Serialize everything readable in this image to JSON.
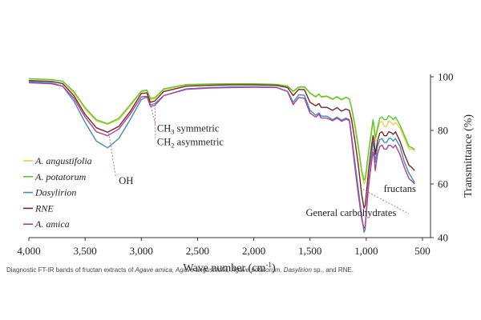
{
  "chart_data": {
    "type": "line",
    "title": "",
    "xlabel": "Wave number (cm",
    "xlabel_sup": "-1",
    "xlabel_close": ")",
    "ylabel": "Transmittance (%)",
    "xlim": [
      4000,
      500
    ],
    "ylim": [
      40,
      100
    ],
    "x_ticks": [
      "4,000",
      "3,500",
      "3,000",
      "2,500",
      "2,000",
      "1,500",
      "1,000",
      "500"
    ],
    "x_tick_values": [
      4000,
      3500,
      3000,
      2500,
      2000,
      1500,
      1000,
      500
    ],
    "y_ticks": [
      "40",
      "60",
      "80",
      "100"
    ],
    "y_tick_values": [
      40,
      60,
      80,
      100
    ],
    "grid": false,
    "legend_position": "left",
    "series": [
      {
        "name": "A. angustifolia",
        "color": "#f2c84b",
        "points": [
          [
            4000,
            99.2
          ],
          [
            3800,
            98.9
          ],
          [
            3700,
            98.3
          ],
          [
            3600,
            94
          ],
          [
            3500,
            88
          ],
          [
            3400,
            83.5
          ],
          [
            3300,
            82.3
          ],
          [
            3200,
            84
          ],
          [
            3100,
            89
          ],
          [
            3000,
            94.5
          ],
          [
            2950,
            94.8
          ],
          [
            2920,
            91.5
          ],
          [
            2880,
            91.8
          ],
          [
            2800,
            95.2
          ],
          [
            2600,
            97
          ],
          [
            2400,
            97.2
          ],
          [
            2200,
            97.3
          ],
          [
            2000,
            97.3
          ],
          [
            1800,
            97.1
          ],
          [
            1700,
            96.4
          ],
          [
            1650,
            94.4
          ],
          [
            1600,
            96
          ],
          [
            1550,
            96.1
          ],
          [
            1500,
            93.8
          ],
          [
            1450,
            92.4
          ],
          [
            1420,
            93.4
          ],
          [
            1400,
            92.4
          ],
          [
            1350,
            92.6
          ],
          [
            1300,
            91.5
          ],
          [
            1260,
            92.4
          ],
          [
            1220,
            91.3
          ],
          [
            1180,
            92.2
          ],
          [
            1150,
            91.6
          ],
          [
            1130,
            88
          ],
          [
            1100,
            81
          ],
          [
            1070,
            73
          ],
          [
            1040,
            64
          ],
          [
            1020,
            60
          ],
          [
            1010,
            60.8
          ],
          [
            1000,
            64
          ],
          [
            980,
            71
          ],
          [
            960,
            77
          ],
          [
            940,
            83
          ],
          [
            930,
            80.5
          ],
          [
            920,
            76
          ],
          [
            900,
            80
          ],
          [
            880,
            83
          ],
          [
            860,
            83.3
          ],
          [
            840,
            81.5
          ],
          [
            820,
            81.5
          ],
          [
            800,
            83.5
          ],
          [
            780,
            83
          ],
          [
            760,
            82
          ],
          [
            740,
            83
          ],
          [
            700,
            81
          ],
          [
            660,
            77
          ],
          [
            620,
            73
          ],
          [
            590,
            73
          ],
          [
            570,
            72.5
          ]
        ]
      },
      {
        "name": "A. potatorum",
        "color": "#55cc2e",
        "points": [
          [
            4000,
            99.3
          ],
          [
            3800,
            99
          ],
          [
            3700,
            98.4
          ],
          [
            3600,
            94.5
          ],
          [
            3500,
            88.5
          ],
          [
            3400,
            84
          ],
          [
            3300,
            82.5
          ],
          [
            3200,
            84.5
          ],
          [
            3100,
            89.5
          ],
          [
            3000,
            94.7
          ],
          [
            2950,
            95.1
          ],
          [
            2920,
            92
          ],
          [
            2880,
            92.2
          ],
          [
            2800,
            95.5
          ],
          [
            2600,
            97.1
          ],
          [
            2400,
            97.3
          ],
          [
            2200,
            97.4
          ],
          [
            2000,
            97.4
          ],
          [
            1800,
            97.2
          ],
          [
            1700,
            96.6
          ],
          [
            1650,
            94.6
          ],
          [
            1600,
            96.2
          ],
          [
            1550,
            96.3
          ],
          [
            1500,
            94
          ],
          [
            1450,
            92.6
          ],
          [
            1420,
            93.6
          ],
          [
            1400,
            92.6
          ],
          [
            1350,
            92.8
          ],
          [
            1300,
            91.7
          ],
          [
            1260,
            92.6
          ],
          [
            1220,
            91.5
          ],
          [
            1180,
            92.4
          ],
          [
            1150,
            91.8
          ],
          [
            1130,
            88.5
          ],
          [
            1100,
            82
          ],
          [
            1070,
            74
          ],
          [
            1040,
            65
          ],
          [
            1020,
            61.5
          ],
          [
            1010,
            62
          ],
          [
            1000,
            65
          ],
          [
            980,
            72
          ],
          [
            960,
            78
          ],
          [
            940,
            84
          ],
          [
            930,
            81.5
          ],
          [
            920,
            77
          ],
          [
            900,
            81
          ],
          [
            880,
            84.5
          ],
          [
            860,
            85
          ],
          [
            840,
            84
          ],
          [
            820,
            84
          ],
          [
            800,
            85.5
          ],
          [
            780,
            85
          ],
          [
            760,
            84
          ],
          [
            740,
            85
          ],
          [
            700,
            82
          ],
          [
            660,
            78
          ],
          [
            620,
            74
          ],
          [
            590,
            73.5
          ],
          [
            570,
            72.8
          ]
        ]
      },
      {
        "name": "Dasylirion",
        "color": "#3f8fb8",
        "points": [
          [
            4000,
            98.2
          ],
          [
            3800,
            97.8
          ],
          [
            3700,
            96.5
          ],
          [
            3600,
            91
          ],
          [
            3500,
            83
          ],
          [
            3400,
            76
          ],
          [
            3300,
            73.5
          ],
          [
            3200,
            77
          ],
          [
            3100,
            84
          ],
          [
            3000,
            91.5
          ],
          [
            2950,
            92.5
          ],
          [
            2920,
            89.6
          ],
          [
            2880,
            90
          ],
          [
            2800,
            93
          ],
          [
            2600,
            95.5
          ],
          [
            2400,
            96
          ],
          [
            2200,
            96.2
          ],
          [
            2000,
            96.3
          ],
          [
            1800,
            96.1
          ],
          [
            1700,
            94.6
          ],
          [
            1650,
            90.5
          ],
          [
            1600,
            93.3
          ],
          [
            1550,
            93.1
          ],
          [
            1500,
            87.5
          ],
          [
            1450,
            85.7
          ],
          [
            1420,
            86.5
          ],
          [
            1400,
            85.3
          ],
          [
            1350,
            85.3
          ],
          [
            1300,
            84
          ],
          [
            1260,
            85
          ],
          [
            1220,
            83.8
          ],
          [
            1180,
            84.6
          ],
          [
            1150,
            84
          ],
          [
            1130,
            78
          ],
          [
            1100,
            68
          ],
          [
            1070,
            58
          ],
          [
            1040,
            48
          ],
          [
            1020,
            42
          ],
          [
            1010,
            43
          ],
          [
            1000,
            50
          ],
          [
            980,
            60
          ],
          [
            960,
            68
          ],
          [
            940,
            76
          ],
          [
            930,
            73
          ],
          [
            920,
            68
          ],
          [
            900,
            74
          ],
          [
            880,
            76.5
          ],
          [
            860,
            77
          ],
          [
            840,
            75.5
          ],
          [
            820,
            75.5
          ],
          [
            800,
            77
          ],
          [
            780,
            77
          ],
          [
            760,
            76
          ],
          [
            740,
            77
          ],
          [
            700,
            74
          ],
          [
            660,
            68
          ],
          [
            620,
            64
          ],
          [
            590,
            62
          ],
          [
            570,
            60.5
          ]
        ]
      },
      {
        "name": "RNE",
        "color": "#7a2424",
        "points": [
          [
            4000,
            98.6
          ],
          [
            3800,
            98.3
          ],
          [
            3700,
            97.5
          ],
          [
            3600,
            93
          ],
          [
            3500,
            86
          ],
          [
            3400,
            81
          ],
          [
            3300,
            79.3
          ],
          [
            3200,
            81.5
          ],
          [
            3100,
            87
          ],
          [
            3000,
            93.8
          ],
          [
            2950,
            94
          ],
          [
            2920,
            90.5
          ],
          [
            2880,
            91
          ],
          [
            2800,
            94.5
          ],
          [
            2600,
            96.5
          ],
          [
            2400,
            96.8
          ],
          [
            2200,
            97
          ],
          [
            2000,
            97
          ],
          [
            1800,
            96.8
          ],
          [
            1700,
            96
          ],
          [
            1650,
            93
          ],
          [
            1600,
            95.3
          ],
          [
            1550,
            95.2
          ],
          [
            1500,
            90.5
          ],
          [
            1450,
            89.2
          ],
          [
            1420,
            90
          ],
          [
            1400,
            88.6
          ],
          [
            1350,
            88.6
          ],
          [
            1300,
            87.5
          ],
          [
            1260,
            88.5
          ],
          [
            1220,
            87.2
          ],
          [
            1180,
            88
          ],
          [
            1150,
            87.4
          ],
          [
            1130,
            84
          ],
          [
            1100,
            76
          ],
          [
            1070,
            67
          ],
          [
            1040,
            56
          ],
          [
            1020,
            51
          ],
          [
            1010,
            52
          ],
          [
            1000,
            56
          ],
          [
            980,
            65
          ],
          [
            960,
            72
          ],
          [
            940,
            78
          ],
          [
            930,
            76
          ],
          [
            920,
            71
          ],
          [
            900,
            76
          ],
          [
            880,
            79
          ],
          [
            860,
            79.5
          ],
          [
            840,
            78
          ],
          [
            820,
            78
          ],
          [
            800,
            79.5
          ],
          [
            780,
            79.2
          ],
          [
            760,
            78.5
          ],
          [
            740,
            79.5
          ],
          [
            700,
            76
          ],
          [
            660,
            71
          ],
          [
            620,
            67
          ],
          [
            590,
            66
          ],
          [
            570,
            65
          ]
        ]
      },
      {
        "name": "A. amica",
        "color": "#b03f98",
        "points": [
          [
            4000,
            97.8
          ],
          [
            3800,
            97.4
          ],
          [
            3700,
            96.5
          ],
          [
            3600,
            92
          ],
          [
            3500,
            85
          ],
          [
            3400,
            79.5
          ],
          [
            3300,
            78
          ],
          [
            3200,
            80.5
          ],
          [
            3100,
            86
          ],
          [
            3000,
            92.5
          ],
          [
            2950,
            92.7
          ],
          [
            2920,
            89
          ],
          [
            2880,
            89.3
          ],
          [
            2800,
            93
          ],
          [
            2600,
            95.3
          ],
          [
            2400,
            95.8
          ],
          [
            2200,
            96
          ],
          [
            2000,
            96.1
          ],
          [
            1800,
            96
          ],
          [
            1700,
            94.5
          ],
          [
            1650,
            89.6
          ],
          [
            1600,
            92.3
          ],
          [
            1550,
            92
          ],
          [
            1500,
            86.5
          ],
          [
            1450,
            85
          ],
          [
            1420,
            86
          ],
          [
            1400,
            84.6
          ],
          [
            1350,
            84.6
          ],
          [
            1300,
            83.6
          ],
          [
            1260,
            84.6
          ],
          [
            1220,
            83.4
          ],
          [
            1180,
            84.2
          ],
          [
            1150,
            83.6
          ],
          [
            1130,
            77
          ],
          [
            1100,
            66
          ],
          [
            1070,
            56
          ],
          [
            1040,
            47
          ],
          [
            1020,
            43.5
          ],
          [
            1010,
            44
          ],
          [
            1000,
            49
          ],
          [
            980,
            59
          ],
          [
            960,
            66
          ],
          [
            940,
            72
          ],
          [
            930,
            70
          ],
          [
            920,
            65
          ],
          [
            900,
            71
          ],
          [
            880,
            74
          ],
          [
            860,
            74.5
          ],
          [
            840,
            73
          ],
          [
            820,
            73
          ],
          [
            800,
            74.5
          ],
          [
            780,
            74.3
          ],
          [
            760,
            73.5
          ],
          [
            740,
            74.5
          ],
          [
            700,
            71
          ],
          [
            660,
            66
          ],
          [
            620,
            62
          ],
          [
            590,
            61
          ],
          [
            570,
            60
          ]
        ]
      }
    ],
    "annotations": [
      {
        "id": "oh",
        "text": "OH",
        "target": [
          3290,
          79
        ],
        "label_at": [
          3200,
          60
        ]
      },
      {
        "id": "ch3",
        "text": "CH",
        "sub": "3",
        "rest": " symmetric",
        "target": [
          2920,
          90
        ],
        "label_at": [
          2860,
          79.5
        ]
      },
      {
        "id": "ch2",
        "text": "CH",
        "sub": "2",
        "rest": " asymmetric",
        "target": [
          2880,
          89.5
        ],
        "label_at": [
          2860,
          74.5
        ]
      },
      {
        "id": "carb",
        "text": "General carbohydrates",
        "target": [
          1030,
          58
        ],
        "label_at": [
          1135,
          48
        ]
      },
      {
        "id": "fructans",
        "text": "fructans",
        "target": [
          935,
          73
        ],
        "label_at": [
          845,
          57
        ]
      }
    ]
  },
  "caption": {
    "text_1": "Diagnostic FT-IR bands of fructan extracts of ",
    "italic_1": "Agave amica, Agave angustifolia, Agave potatorum, Dasylirion",
    "text_2": " sp., and RNE."
  }
}
